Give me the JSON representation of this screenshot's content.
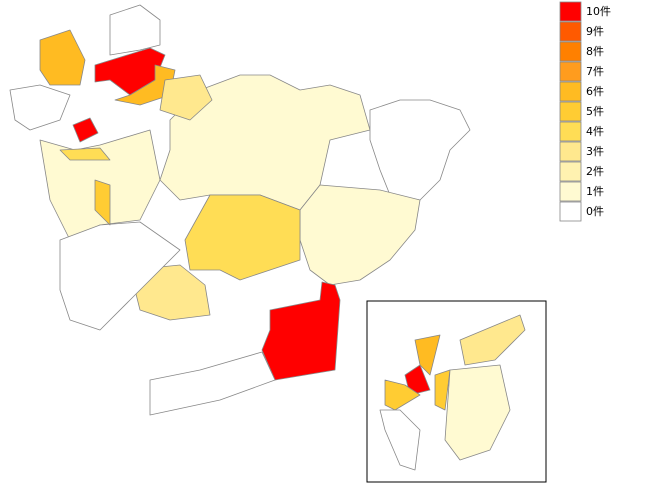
{
  "map": {
    "legend": [
      {
        "value": 10,
        "label": "10件",
        "color": "#ff0000"
      },
      {
        "value": 9,
        "label": "9件",
        "color": "#ff5a00"
      },
      {
        "value": 8,
        "label": "8件",
        "color": "#ff8000"
      },
      {
        "value": 7,
        "label": "7件",
        "color": "#ff9c1e"
      },
      {
        "value": 6,
        "label": "6件",
        "color": "#ffbb22"
      },
      {
        "value": 5,
        "label": "5件",
        "color": "#ffcc33"
      },
      {
        "value": 4,
        "label": "4件",
        "color": "#ffdd55"
      },
      {
        "value": 3,
        "label": "3件",
        "color": "#ffe88e"
      },
      {
        "value": 2,
        "label": "2件",
        "color": "#fff2b0"
      },
      {
        "value": 1,
        "label": "1件",
        "color": "#fffad2"
      },
      {
        "value": 0,
        "label": "0件",
        "color": "#ffffff"
      }
    ],
    "region_values": [
      1,
      0,
      1,
      4,
      10,
      0,
      10,
      6,
      6,
      10,
      3,
      6,
      1,
      0,
      3,
      0,
      5,
      4,
      0,
      10,
      6,
      5,
      3,
      1,
      5,
      0
    ]
  }
}
